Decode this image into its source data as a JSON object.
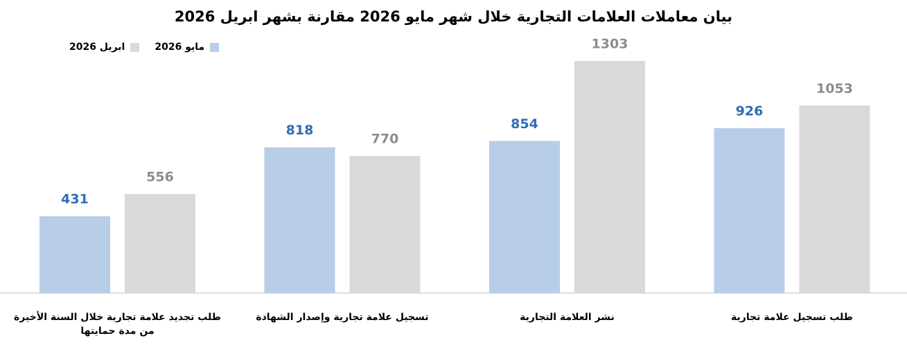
{
  "chart_data": {
    "type": "bar",
    "title": "بيان معاملات العلامات التجارية خلال شهر مايو 2026 مقارنة بشهر ابريل 2026",
    "categories": [
      "طلب تسجيل علامة تجارية",
      "نشر العلامة التجارية",
      "تسجيل علامة تجارية وإصدار الشهادة",
      "طلب تجديد علامة تجارية خلال السنة الأخيرة من مدة حمايتها"
    ],
    "series": [
      {
        "name": "مايو 2026",
        "color": "#b7cde8",
        "label_color": "#2e6db4",
        "values": [
          926,
          854,
          818,
          431
        ]
      },
      {
        "name": "ابريل 2026",
        "color": "#d9d9d9",
        "label_color": "#8c8c8c",
        "values": [
          1053,
          1303,
          770,
          556
        ]
      }
    ],
    "grid": false
  }
}
